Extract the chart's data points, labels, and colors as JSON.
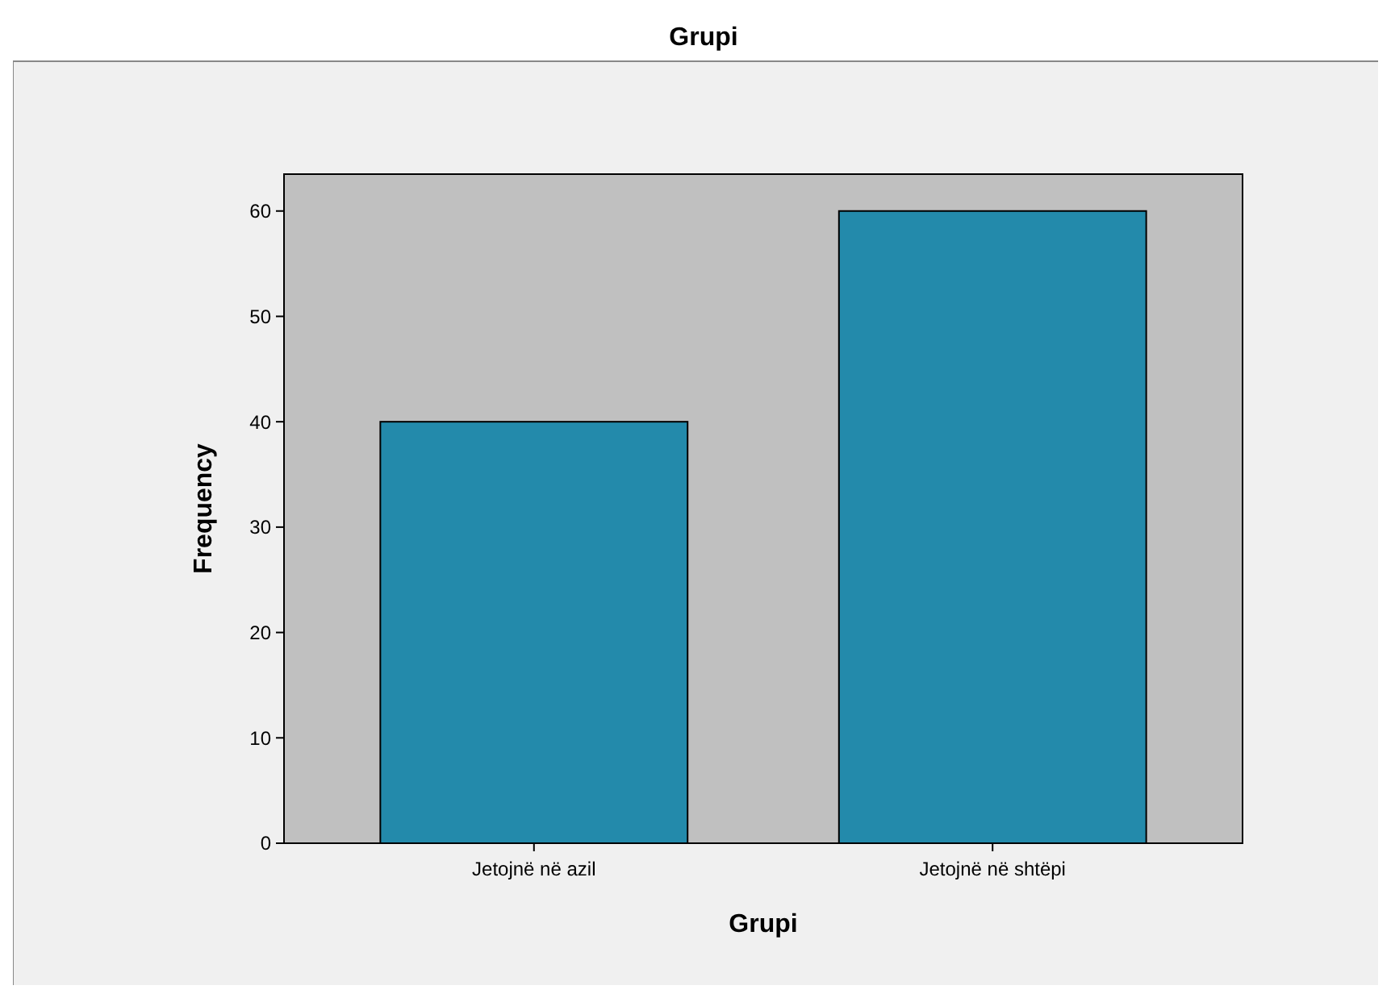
{
  "chart_data": {
    "type": "bar",
    "title": "Grupi",
    "xlabel": "Grupi",
    "ylabel": "Frequency",
    "categories": [
      "Jetojnë në azil",
      "Jetojnë në shtëpi"
    ],
    "values": [
      40,
      60
    ],
    "color": "#238aab",
    "ylim": [
      0,
      63.5
    ],
    "yticks": [
      0,
      10,
      20,
      30,
      40,
      50,
      60
    ]
  }
}
